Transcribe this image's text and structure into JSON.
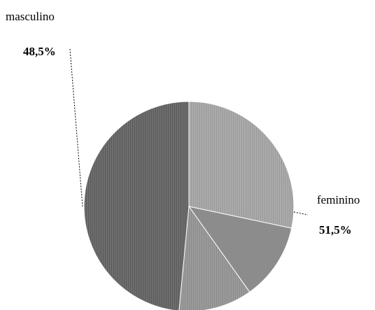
{
  "chart_data": {
    "type": "pie",
    "title": "",
    "categories": [
      "masculino",
      "feminino"
    ],
    "values": [
      48.5,
      51.5
    ],
    "labels": [
      "48,5%",
      "51,5%"
    ],
    "unit": "%",
    "legend": "none",
    "colors": {
      "masculino": "#6e6e6e",
      "feminino_light": "#a9a9a9",
      "feminino_mid": "#8c8c8c",
      "feminino_dark": "#9a9a9a"
    }
  }
}
